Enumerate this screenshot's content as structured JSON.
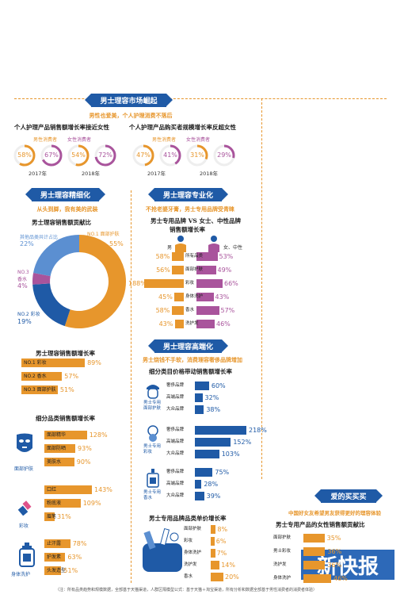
{
  "section1": {
    "banner": "男士理容市场崛起",
    "subtitle": "男性也爱美，个人护理消费不落后",
    "left_title": "个人护理产品销售额增长率接近女性",
    "right_title": "个人护理产品购买者规模增长率反超女性",
    "legend_male": "男性消费者",
    "legend_female": "女性消费者",
    "year1": "2017年",
    "year2": "2018年"
  },
  "section2": {
    "banner": "男士理容精细化",
    "subtitle": "从头到脚，我有美的武装",
    "donut_title": "男士理容销售额贡献比",
    "other_label": "其他品类共计占比",
    "no1_label": "NO.1 面部护肤",
    "no3_label": "NO.3 香水",
    "no2_label": "NO.2 彩妆",
    "growth_title": "男士理容销售额增长率",
    "sub_title": "细分品类销售额增长率",
    "face_label": "面部护肤",
    "makeup_label": "彩妆",
    "body_label": "身体洗护"
  },
  "section3": {
    "banner": "男士理容专业化",
    "subtitle": "不抢老婆牙膏，男士专用品牌受青睐",
    "title_line1": "男士专用品牌 VS 女士、中性品牌",
    "title_line2": "销售额增长率",
    "male_label": "男",
    "female_label": "女、中性"
  },
  "section4": {
    "banner": "男士理容高端化",
    "subtitle": "男士烧钱不手软，消费理容奢侈品牌增加",
    "title": "细分类目价格带动销售额增长率",
    "face_label": "男士专用\n面部护肤",
    "makeup_label": "男士专用\n彩妆",
    "perfume_label": "男士专用\n香水",
    "price_title": "男士专用品牌品类单价增长率"
  },
  "section5": {
    "banner": "爱的买买买",
    "subtitle": "中国好女友希望男友获得更好的理容体验",
    "title": "男士专用产品的女性销售额贡献比"
  },
  "footer": "（注：所有品类趋势和规模数据，全部基于天猫渠道，人群区隔模型公式：基于天猫＋淘宝渠道，所有分析和数据全部基于男性消费者的消费者体验）",
  "watermark": "新快报",
  "colors": {
    "blue": "#1f5aa6",
    "orange": "#e7962c",
    "purple": "#a9549c",
    "light_blue": "#5b8fd1"
  },
  "chart_data": [
    {
      "type": "pie",
      "title": "个人护理产品销售额增长率接近女性",
      "categories": [
        "男性消费者 2017年",
        "女性消费者 2017年",
        "男性消费者 2018年",
        "女性消费者 2018年"
      ],
      "values": [
        58,
        67,
        54,
        72
      ],
      "labels": [
        "58%",
        "67%",
        "54%",
        "72%"
      ]
    },
    {
      "type": "pie",
      "title": "个人护理产品购买者规模增长率反超女性",
      "categories": [
        "男性消费者 2017年",
        "女性消费者 2017年",
        "男性消费者 2018年",
        "女性消费者 2018年"
      ],
      "values": [
        47,
        41,
        31,
        29
      ],
      "labels": [
        "47%",
        "41%",
        "31%",
        "29%"
      ]
    },
    {
      "type": "pie",
      "title": "男士理容销售额贡献比",
      "categories": [
        "NO.1 面部护肤",
        "NO.2 彩妆",
        "NO.3 香水",
        "其他品类共计占比"
      ],
      "values": [
        55,
        19,
        4,
        22
      ],
      "labels": [
        "55%",
        "19%",
        "4%",
        "22%"
      ]
    },
    {
      "type": "bar",
      "title": "男士理容销售额增长率",
      "categories": [
        "NO.1 彩妆",
        "NO.2 香水",
        "NO.3 面部护肤"
      ],
      "values": [
        89,
        57,
        51
      ],
      "labels": [
        "89%",
        "57%",
        "51%"
      ]
    },
    {
      "type": "bar",
      "title": "细分品类销售额增长率",
      "groups": [
        {
          "name": "面部护肤",
          "categories": [
            "面部精华",
            "面部防晒",
            "美肤水"
          ],
          "values": [
            128,
            93,
            90
          ],
          "labels": [
            "128%",
            "93%",
            "90%"
          ]
        },
        {
          "name": "彩妆",
          "categories": [
            "口红",
            "粉底液",
            "眉笔"
          ],
          "values": [
            143,
            109,
            31
          ],
          "labels": [
            "143%",
            "109%",
            "31%"
          ]
        },
        {
          "name": "身体洗护",
          "categories": [
            "止汗露",
            "护发素",
            "头发造型"
          ],
          "values": [
            78,
            63,
            51
          ],
          "labels": [
            "78%",
            "63%",
            "51%"
          ]
        }
      ]
    },
    {
      "type": "bar",
      "title": "男士专用品牌 VS 女士、中性品牌 销售额增长率",
      "categories": [
        "所有品类",
        "面部护肤",
        "彩妆",
        "身体洗护",
        "香水",
        "洗护发"
      ],
      "series": [
        {
          "name": "男",
          "values": [
            58,
            56,
            188,
            45,
            58,
            43
          ],
          "labels": [
            "58%",
            "56%",
            "188%",
            "45%",
            "58%",
            "43%"
          ]
        },
        {
          "name": "女、中性",
          "values": [
            53,
            49,
            66,
            43,
            57,
            46
          ],
          "labels": [
            "53%",
            "49%",
            "66%",
            "43%",
            "57%",
            "46%"
          ]
        }
      ]
    },
    {
      "type": "bar",
      "title": "细分类目价格带动销售额增长率",
      "groups": [
        {
          "name": "男士专用面部护肤",
          "categories": [
            "奢侈品牌",
            "高端品牌",
            "大众品牌"
          ],
          "values": [
            60,
            32,
            38
          ],
          "labels": [
            "60%",
            "32%",
            "38%"
          ]
        },
        {
          "name": "男士专用彩妆",
          "categories": [
            "奢侈品牌",
            "高端品牌",
            "大众品牌"
          ],
          "values": [
            218,
            152,
            103
          ],
          "labels": [
            "218%",
            "152%",
            "103%"
          ]
        },
        {
          "name": "男士专用香水",
          "categories": [
            "奢侈品牌",
            "高端品牌",
            "大众品牌"
          ],
          "values": [
            75,
            28,
            39
          ],
          "labels": [
            "75%",
            "28%",
            "39%"
          ]
        }
      ]
    },
    {
      "type": "bar",
      "title": "男士专用品牌品类单价增长率",
      "categories": [
        "面部护肤",
        "彩妆",
        "身体洗护",
        "洗护发",
        "香水"
      ],
      "values": [
        8,
        6,
        7,
        14,
        20
      ],
      "labels": [
        "8%",
        "6%",
        "7%",
        "14%",
        "20%"
      ]
    },
    {
      "type": "bar",
      "title": "男士专用产品的女性销售额贡献比",
      "categories": [
        "面部护肤",
        "男士彩妆",
        "洗护发",
        "身体洗护"
      ],
      "values": [
        35,
        36,
        36,
        46
      ],
      "labels": [
        "35%",
        "36%",
        "36%",
        "46%"
      ]
    }
  ]
}
